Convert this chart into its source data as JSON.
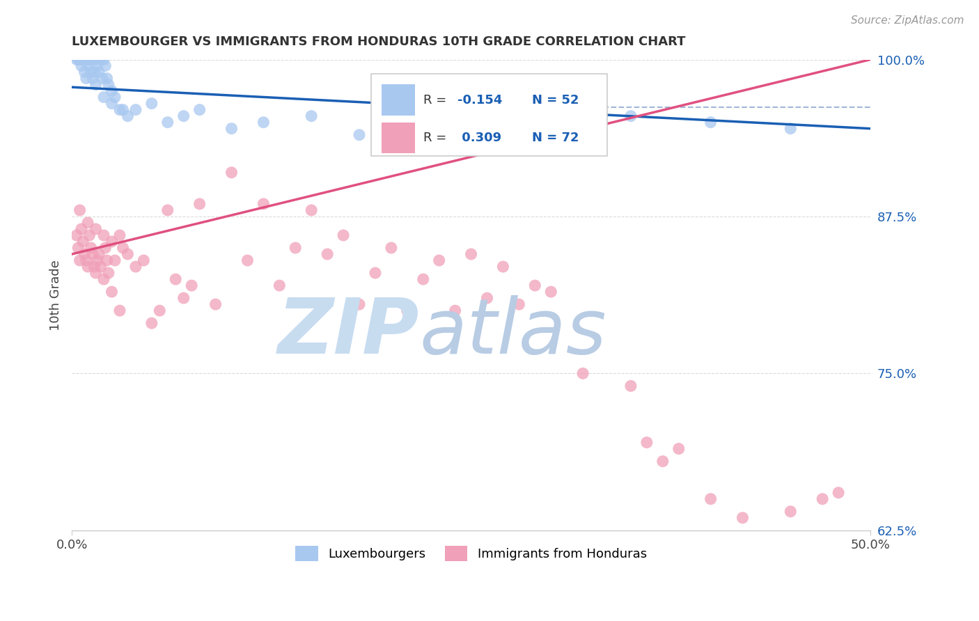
{
  "title": "LUXEMBOURGER VS IMMIGRANTS FROM HONDURAS 10TH GRADE CORRELATION CHART",
  "source_text": "Source: ZipAtlas.com",
  "ylabel": "10th Grade",
  "xlim": [
    0.0,
    50.0
  ],
  "ylim": [
    62.5,
    100.0
  ],
  "y_ticks": [
    62.5,
    75.0,
    87.5,
    100.0
  ],
  "y_tick_labels": [
    "62.5%",
    "75.0%",
    "87.5%",
    "100.0%"
  ],
  "blue_color": "#A8C8F0",
  "pink_color": "#F0A0B8",
  "blue_line_color": "#1A5FB4",
  "pink_line_color": "#E05080",
  "dashed_line_color": "#A0B8D8",
  "watermark_zip_color": "#C8DCF0",
  "watermark_atlas_color": "#B8CCE4",
  "r_blue": -0.154,
  "n_blue": 52,
  "r_pink": 0.309,
  "n_pink": 72,
  "legend_r_color": "#1A5FB4",
  "legend_label1": "Luxembourgers",
  "legend_label2": "Immigrants from Honduras",
  "blue_line_x0": 0.0,
  "blue_line_y0": 97.8,
  "blue_line_x1": 50.0,
  "blue_line_y1": 94.5,
  "pink_line_x0": 0.0,
  "pink_line_y0": 84.5,
  "pink_line_x1": 50.0,
  "pink_line_y1": 100.0,
  "dashed_line_y": 96.2,
  "blue_scatter_x": [
    0.3,
    0.4,
    0.5,
    0.6,
    0.6,
    0.7,
    0.8,
    0.9,
    0.9,
    1.0,
    1.0,
    1.1,
    1.2,
    1.2,
    1.3,
    1.3,
    1.4,
    1.4,
    1.5,
    1.5,
    1.6,
    1.7,
    1.8,
    1.9,
    2.0,
    2.0,
    2.1,
    2.2,
    2.3,
    2.5,
    2.5,
    2.7,
    3.0,
    3.2,
    3.5,
    4.0,
    5.0,
    6.0,
    7.0,
    8.0,
    10.0,
    12.0,
    15.0,
    18.0,
    20.0,
    22.0,
    25.0,
    28.0,
    30.0,
    35.0,
    40.0,
    45.0
  ],
  "blue_scatter_y": [
    100.0,
    100.0,
    100.0,
    100.0,
    99.5,
    100.0,
    99.0,
    100.0,
    98.5,
    100.0,
    99.5,
    100.0,
    100.0,
    99.0,
    100.0,
    98.5,
    100.0,
    99.0,
    100.0,
    98.0,
    99.5,
    99.0,
    100.0,
    98.5,
    100.0,
    97.0,
    99.5,
    98.5,
    98.0,
    97.5,
    96.5,
    97.0,
    96.0,
    96.0,
    95.5,
    96.0,
    96.5,
    95.0,
    95.5,
    96.0,
    94.5,
    95.0,
    95.5,
    94.0,
    95.0,
    94.5,
    95.5,
    94.0,
    94.5,
    95.5,
    95.0,
    94.5
  ],
  "pink_scatter_x": [
    0.3,
    0.4,
    0.5,
    0.5,
    0.6,
    0.7,
    0.8,
    0.9,
    1.0,
    1.0,
    1.1,
    1.2,
    1.3,
    1.4,
    1.5,
    1.5,
    1.6,
    1.7,
    1.8,
    2.0,
    2.0,
    2.1,
    2.2,
    2.3,
    2.5,
    2.5,
    2.7,
    3.0,
    3.0,
    3.2,
    3.5,
    4.0,
    4.5,
    5.0,
    5.5,
    6.0,
    6.5,
    7.0,
    7.5,
    8.0,
    9.0,
    10.0,
    11.0,
    12.0,
    13.0,
    14.0,
    15.0,
    16.0,
    17.0,
    18.0,
    19.0,
    20.0,
    21.0,
    22.0,
    23.0,
    24.0,
    25.0,
    26.0,
    27.0,
    28.0,
    29.0,
    30.0,
    32.0,
    35.0,
    36.0,
    37.0,
    38.0,
    40.0,
    42.0,
    45.0,
    47.0,
    48.0
  ],
  "pink_scatter_y": [
    86.0,
    85.0,
    84.0,
    88.0,
    86.5,
    85.5,
    84.5,
    84.0,
    87.0,
    83.5,
    86.0,
    85.0,
    84.5,
    83.5,
    86.5,
    83.0,
    84.0,
    84.5,
    83.5,
    86.0,
    82.5,
    85.0,
    84.0,
    83.0,
    85.5,
    81.5,
    84.0,
    86.0,
    80.0,
    85.0,
    84.5,
    83.5,
    84.0,
    79.0,
    80.0,
    88.0,
    82.5,
    81.0,
    82.0,
    88.5,
    80.5,
    91.0,
    84.0,
    88.5,
    82.0,
    85.0,
    88.0,
    84.5,
    86.0,
    80.5,
    83.0,
    85.0,
    80.0,
    82.5,
    84.0,
    80.0,
    84.5,
    81.0,
    83.5,
    80.5,
    82.0,
    81.5,
    75.0,
    74.0,
    69.5,
    68.0,
    69.0,
    65.0,
    63.5,
    64.0,
    65.0,
    65.5
  ]
}
